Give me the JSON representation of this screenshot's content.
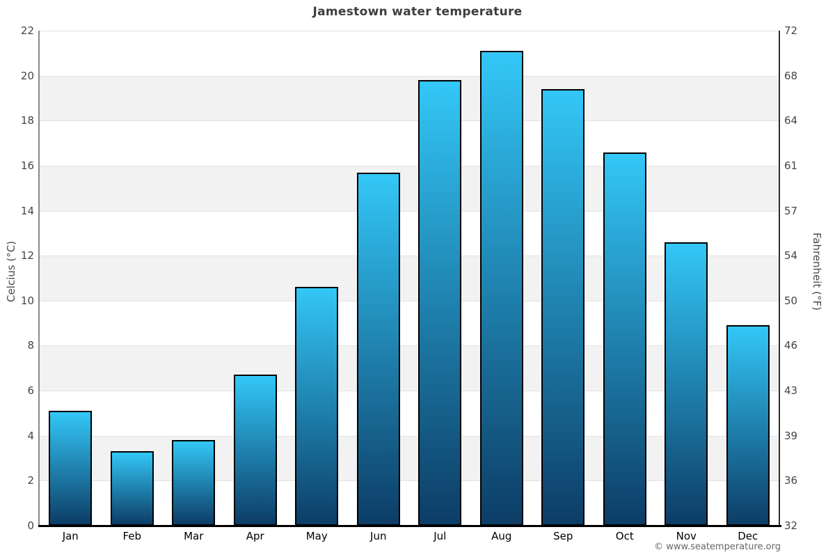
{
  "page": {
    "footer": "© www.seatemperature.org"
  },
  "chart_data": {
    "type": "bar",
    "title": "Jamestown water temperature",
    "categories": [
      "Jan",
      "Feb",
      "Mar",
      "Apr",
      "May",
      "Jun",
      "Jul",
      "Aug",
      "Sep",
      "Oct",
      "Nov",
      "Dec"
    ],
    "values": [
      5.1,
      3.3,
      3.8,
      6.7,
      10.6,
      15.7,
      19.8,
      21.1,
      19.4,
      16.6,
      12.6,
      8.9
    ],
    "unit": "°C",
    "ylabel_left": "Celcius (°C)",
    "ylabel_right": "Fahrenheit (°F)",
    "ylim": [
      0,
      22
    ],
    "celsius_ticks": [
      22,
      20,
      18,
      16,
      14,
      12,
      10,
      8,
      6,
      4,
      2,
      0
    ],
    "fahrenheit_ticks": [
      72,
      68,
      64,
      61,
      57,
      54,
      50,
      46,
      43,
      39,
      36,
      32
    ],
    "xlabel": "",
    "legend": "none",
    "grid": "horizontal gridlines every 2°C with alternating white and light-gray bands",
    "colors": {
      "bar_top": "#33C7F7",
      "bar_bottom": "#0C3D66",
      "bar_border": "#000000",
      "band_alt": "#f2f2f2",
      "gridline": "#e3e3e3",
      "axis_left": "#8a8a8a",
      "axis_right": "#2e2e2e",
      "axis_bottom": "#000000"
    }
  }
}
